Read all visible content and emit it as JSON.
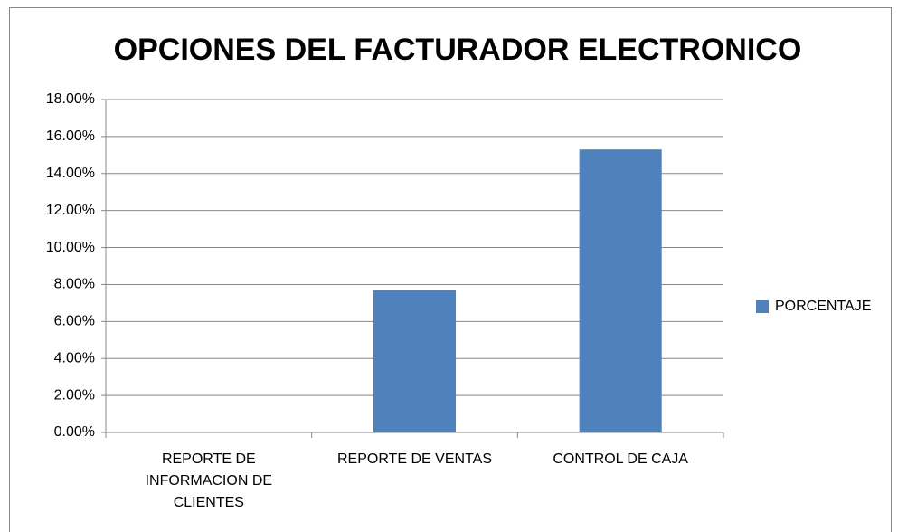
{
  "chart_data": {
    "type": "bar",
    "title": "OPCIONES DEL FACTURADOR ELECTRONICO",
    "categories": [
      "REPORTE DE INFORMACION DE CLIENTES",
      "REPORTE DE VENTAS",
      "CONTROL DE CAJA"
    ],
    "series": [
      {
        "name": "PORCENTAJE",
        "color": "#4f81bd",
        "values": [
          0,
          7.7,
          15.3
        ]
      }
    ],
    "ylim": [
      0,
      18
    ],
    "yticks": [
      {
        "value": 0,
        "label": "0.00%"
      },
      {
        "value": 2,
        "label": "2.00%"
      },
      {
        "value": 4,
        "label": "4.00%"
      },
      {
        "value": 6,
        "label": "6.00%"
      },
      {
        "value": 8,
        "label": "8.00%"
      },
      {
        "value": 10,
        "label": "10.00%"
      },
      {
        "value": 12,
        "label": "12.00%"
      },
      {
        "value": 14,
        "label": "14.00%"
      },
      {
        "value": 16,
        "label": "16.00%"
      },
      {
        "value": 18,
        "label": "18.00%"
      }
    ],
    "grid": true,
    "legend": "right"
  }
}
